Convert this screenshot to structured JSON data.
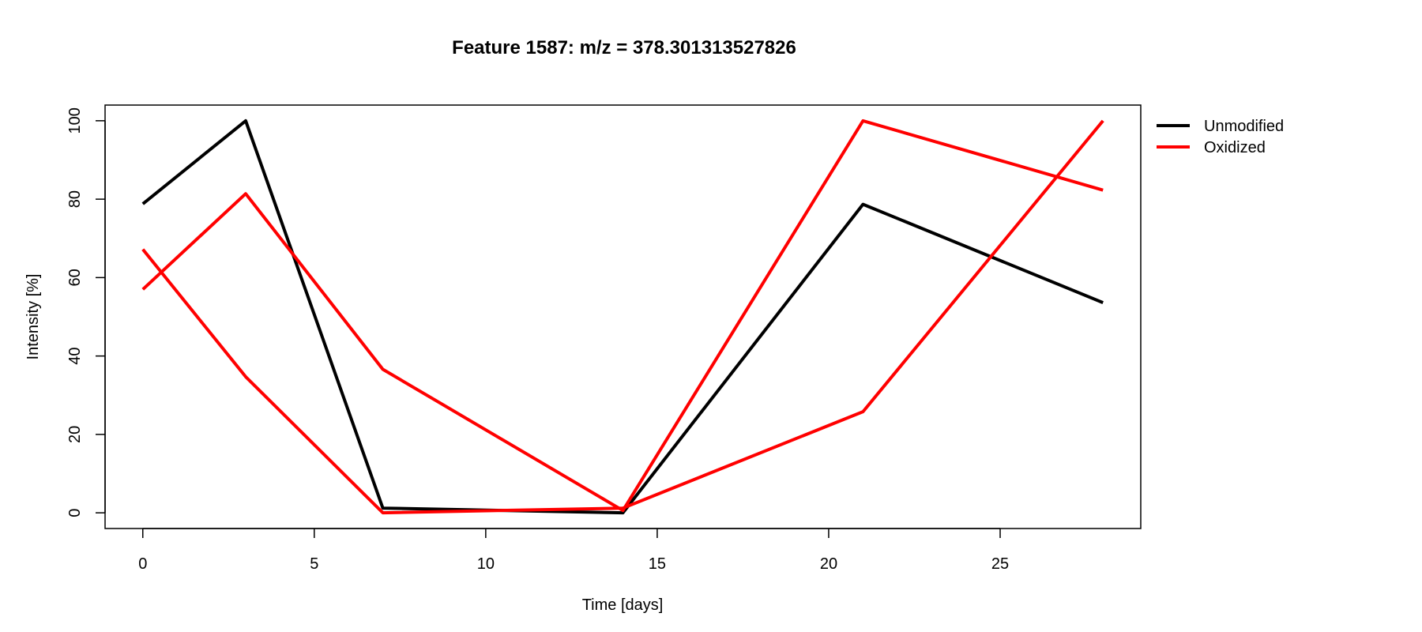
{
  "chart_data": {
    "type": "line",
    "title": "Feature 1587: m/z = 378.301313527826",
    "xlabel": "Time [days]",
    "ylabel": "Intensity [%]",
    "xlim": [
      -1.1,
      29.1
    ],
    "ylim": [
      -4,
      104
    ],
    "xticks": [
      0,
      5,
      10,
      15,
      20,
      25
    ],
    "yticks": [
      0,
      20,
      40,
      60,
      80,
      100
    ],
    "grid": false,
    "legend_position": "right",
    "legend": [
      {
        "label": "Unmodified",
        "color": "#000000"
      },
      {
        "label": "Oxidized",
        "color": "#ff0000"
      }
    ],
    "series": [
      {
        "group": "Unmodified",
        "color": "#000000",
        "x": [
          0,
          3,
          7,
          14,
          21,
          28
        ],
        "y": [
          78.8,
          100,
          1.2,
          0,
          78.7,
          53.6
        ]
      },
      {
        "group": "Oxidized",
        "color": "#ff0000",
        "x": [
          0,
          3,
          7,
          14,
          21,
          28
        ],
        "y": [
          57,
          81.4,
          36.6,
          0.6,
          100,
          82.3
        ]
      },
      {
        "group": "Oxidized",
        "color": "#ff0000",
        "x": [
          0,
          3,
          7,
          14,
          21,
          28
        ],
        "y": [
          67.2,
          34.7,
          0,
          1.2,
          25.8,
          100
        ]
      }
    ]
  }
}
